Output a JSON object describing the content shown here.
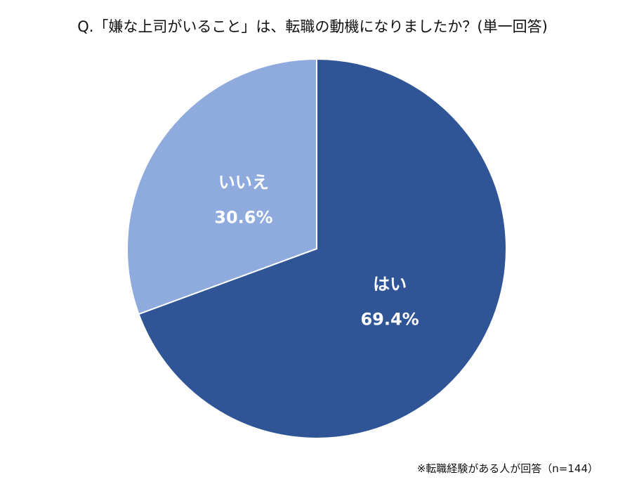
{
  "chart_data": {
    "type": "pie",
    "title": "Q.「嫌な上司がいること」は、転職の動機になりましたか？(単一回答)",
    "slices": [
      {
        "label": "はい",
        "value": 69.4,
        "value_label": "69.4%",
        "color": "#2F5597"
      },
      {
        "label": "いいえ",
        "value": 30.6,
        "value_label": "30.6%",
        "color": "#8FAADC"
      }
    ],
    "start": "12 o'clock",
    "direction": "clockwise",
    "note": "※転職経験がある人が回答（n=144）"
  }
}
